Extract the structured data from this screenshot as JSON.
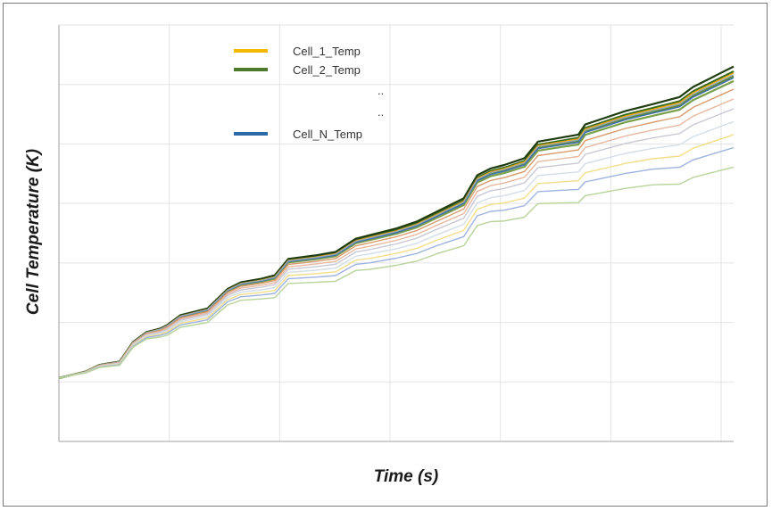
{
  "chart_data": {
    "type": "line",
    "xlabel": "Time (s)",
    "ylabel": "Cell Temperature (K)",
    "grid": true,
    "legend_position": "top-left",
    "x_tick_count": 6,
    "y_gridline_count": 7,
    "legend": {
      "entries": [
        {
          "label": "Cell_1_Temp",
          "color": "#f5b800"
        },
        {
          "label": "Cell_2_Temp",
          "color": "#4e7a2e"
        },
        {
          "label": "..",
          "color": ""
        },
        {
          "label": "..",
          "color": ""
        },
        {
          "label": "Cell_N_Temp",
          "color": "#2e6aa8"
        }
      ]
    },
    "x": [
      0,
      0.02,
      0.04,
      0.06,
      0.09,
      0.11,
      0.13,
      0.15,
      0.16,
      0.18,
      0.22,
      0.25,
      0.27,
      0.3,
      0.32,
      0.34,
      0.38,
      0.41,
      0.44,
      0.46,
      0.5,
      0.53,
      0.56,
      0.58,
      0.6,
      0.62,
      0.64,
      0.66,
      0.69,
      0.71,
      0.74,
      0.77,
      0.78,
      0.81,
      0.84,
      0.88,
      0.9,
      0.92,
      0.94,
      0.96,
      0.98,
      1.0
    ],
    "reference_curve": [
      0,
      0.01,
      0.02,
      0.04,
      0.05,
      0.11,
      0.14,
      0.15,
      0.16,
      0.19,
      0.21,
      0.27,
      0.29,
      0.3,
      0.31,
      0.36,
      0.37,
      0.38,
      0.42,
      0.43,
      0.45,
      0.47,
      0.5,
      0.52,
      0.54,
      0.61,
      0.63,
      0.64,
      0.66,
      0.71,
      0.72,
      0.73,
      0.76,
      0.78,
      0.8,
      0.82,
      0.83,
      0.84,
      0.87,
      0.89,
      0.91,
      0.93
    ],
    "series": [
      {
        "color": "#5c8a3a",
        "offset": 0.0
      },
      {
        "color": "#3b6a22",
        "offset": -0.015
      },
      {
        "color": "#1f3d10",
        "offset": -0.03
      },
      {
        "color": "#7aa04a",
        "offset": 0.015
      },
      {
        "color": "#f0a800",
        "offset": -0.01
      },
      {
        "color": "#3a6fb0",
        "offset": 0.005
      },
      {
        "color": "#9aa6b0",
        "offset": -0.005
      },
      {
        "color": "#d89a6a",
        "offset": 0.04
      },
      {
        "color": "#e9b8a0",
        "offset": 0.07
      },
      {
        "color": "#c9c9d6",
        "offset": 0.1
      },
      {
        "color": "#d4dde8",
        "offset": 0.14
      },
      {
        "color": "#f2de8a",
        "offset": 0.18
      },
      {
        "color": "#9fb3e0",
        "offset": 0.22
      },
      {
        "color": "#b8d49a",
        "offset": 0.28
      }
    ]
  }
}
